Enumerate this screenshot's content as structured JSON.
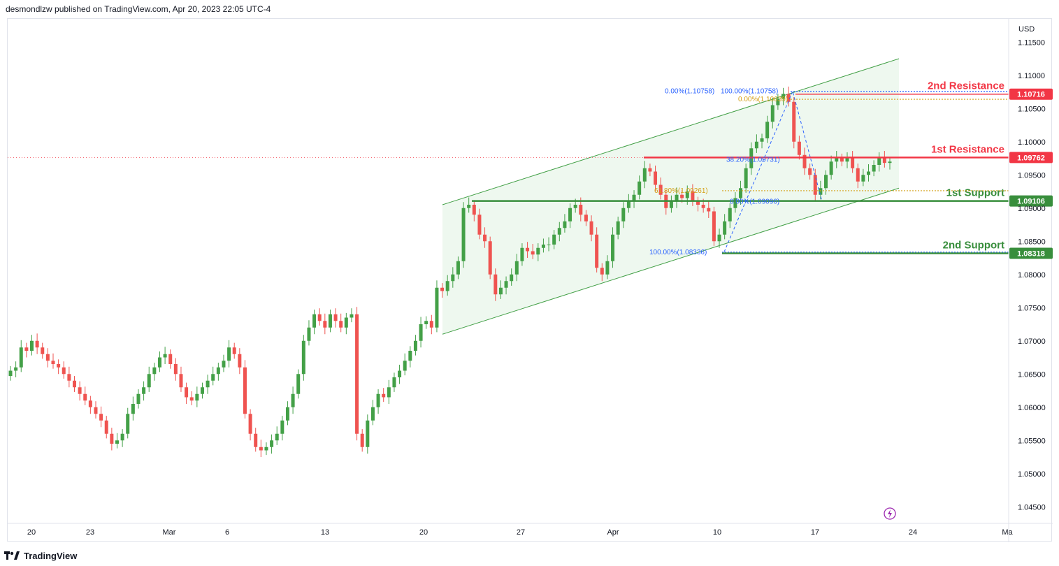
{
  "header": {
    "published": "desmondlzw published on TradingView.com, Apr 20, 2023 22:05 UTC-4"
  },
  "footer": {
    "brand": "TradingView"
  },
  "colors": {
    "up": "#26a69a",
    "up_candle": "#43a047",
    "down": "#ef5350",
    "resistance": "#f23645",
    "support": "#388e3c",
    "channel_fill": "#e8f5e9",
    "channel_line": "#43a047",
    "fib_blue": "#2962ff",
    "fib_orange": "#d4a017",
    "text": "#131722"
  },
  "chart_data": {
    "type": "candlestick",
    "symbol_currency": "USD",
    "y_axis": {
      "ticks": [
        "1.11500",
        "1.11000",
        "1.10500",
        "1.10000",
        "1.09500",
        "1.09000",
        "1.08500",
        "1.08000",
        "1.07500",
        "1.07000",
        "1.06500",
        "1.06000",
        "1.05500",
        "1.05000",
        "1.04500"
      ],
      "ylim": [
        1.0425,
        1.1185
      ]
    },
    "x_axis": {
      "ticks": [
        "20",
        "23",
        "Mar",
        "6",
        "13",
        "20",
        "27",
        "Apr",
        "10",
        "17",
        "24",
        "Ma"
      ]
    },
    "levels": [
      {
        "label": "2nd Resistance",
        "value": 1.10716,
        "price_label": "1.10716",
        "kind": "resistance"
      },
      {
        "label": "1st Resistance",
        "value": 1.09762,
        "price_label": "1.09762",
        "kind": "resistance"
      },
      {
        "label": "1st Support",
        "value": 1.09106,
        "price_label": "1.09106",
        "kind": "support"
      },
      {
        "label": "2nd Support",
        "value": 1.08318,
        "price_label": "1.08318",
        "kind": "support"
      }
    ],
    "fib_labels": [
      {
        "text": "0.00%(1.10758)",
        "value": 1.10758,
        "color": "blue"
      },
      {
        "text": "100.00%(1.10758)",
        "value": 1.10758,
        "color": "blue"
      },
      {
        "text": "0.00%(1.10639)",
        "value": 1.10639,
        "color": "orange"
      },
      {
        "text": "38.20%(1.09731)",
        "value": 1.09731,
        "color": "blue"
      },
      {
        "text": "61.80%(1.09261)",
        "value": 1.09261,
        "color": "orange"
      },
      {
        "text": "0.00%(1.09096)",
        "value": 1.09096,
        "color": "blue"
      },
      {
        "text": "100.00%(1.08336)",
        "value": 1.08336,
        "color": "blue"
      }
    ],
    "close_series": [
      1.0655,
      1.066,
      1.069,
      1.0685,
      1.07,
      1.069,
      1.068,
      1.067,
      1.0665,
      1.066,
      1.065,
      1.064,
      1.063,
      1.062,
      1.061,
      1.06,
      1.059,
      1.058,
      1.056,
      1.0545,
      1.055,
      1.056,
      1.059,
      1.0605,
      1.062,
      1.063,
      1.065,
      1.066,
      1.0675,
      1.068,
      1.0665,
      1.065,
      1.063,
      1.0615,
      1.061,
      1.062,
      1.063,
      1.064,
      1.065,
      1.066,
      1.067,
      1.069,
      1.068,
      1.066,
      1.059,
      1.056,
      1.054,
      1.0535,
      1.054,
      1.055,
      1.056,
      1.058,
      1.06,
      1.062,
      1.065,
      1.07,
      1.072,
      1.074,
      1.073,
      1.072,
      1.074,
      1.073,
      1.072,
      1.0735,
      1.074,
      1.056,
      1.054,
      1.058,
      1.06,
      1.062,
      1.0615,
      1.063,
      1.0645,
      1.0655,
      1.067,
      1.0685,
      1.07,
      1.0725,
      1.073,
      1.072,
      1.078,
      1.0775,
      1.079,
      1.08,
      1.082,
      1.09,
      1.0905,
      1.089,
      1.086,
      1.085,
      1.08,
      1.077,
      1.078,
      1.079,
      1.08,
      1.082,
      1.084,
      1.0835,
      1.083,
      1.084,
      1.0845,
      1.0845,
      1.086,
      1.087,
      1.088,
      1.09,
      1.0905,
      1.089,
      1.088,
      1.086,
      1.081,
      1.08,
      1.082,
      1.086,
      1.088,
      1.09,
      1.091,
      1.092,
      1.094,
      1.096,
      1.0955,
      1.0935,
      1.092,
      1.09,
      1.091,
      1.092,
      1.0915,
      1.0925,
      1.091,
      1.0905,
      1.09,
      1.0895,
      1.085,
      1.086,
      1.088,
      1.09,
      1.0915,
      1.093,
      1.096,
      1.099,
      1.1,
      1.1005,
      1.103,
      1.1055,
      1.1065,
      1.1072,
      1.106,
      1.1,
      1.098,
      1.096,
      1.095,
      1.092,
      1.093,
      1.095,
      1.097,
      1.0975,
      1.097,
      1.0975,
      1.096,
      1.094,
      1.095,
      1.0955,
      1.0965,
      1.0975,
      1.0968,
      1.097
    ]
  }
}
